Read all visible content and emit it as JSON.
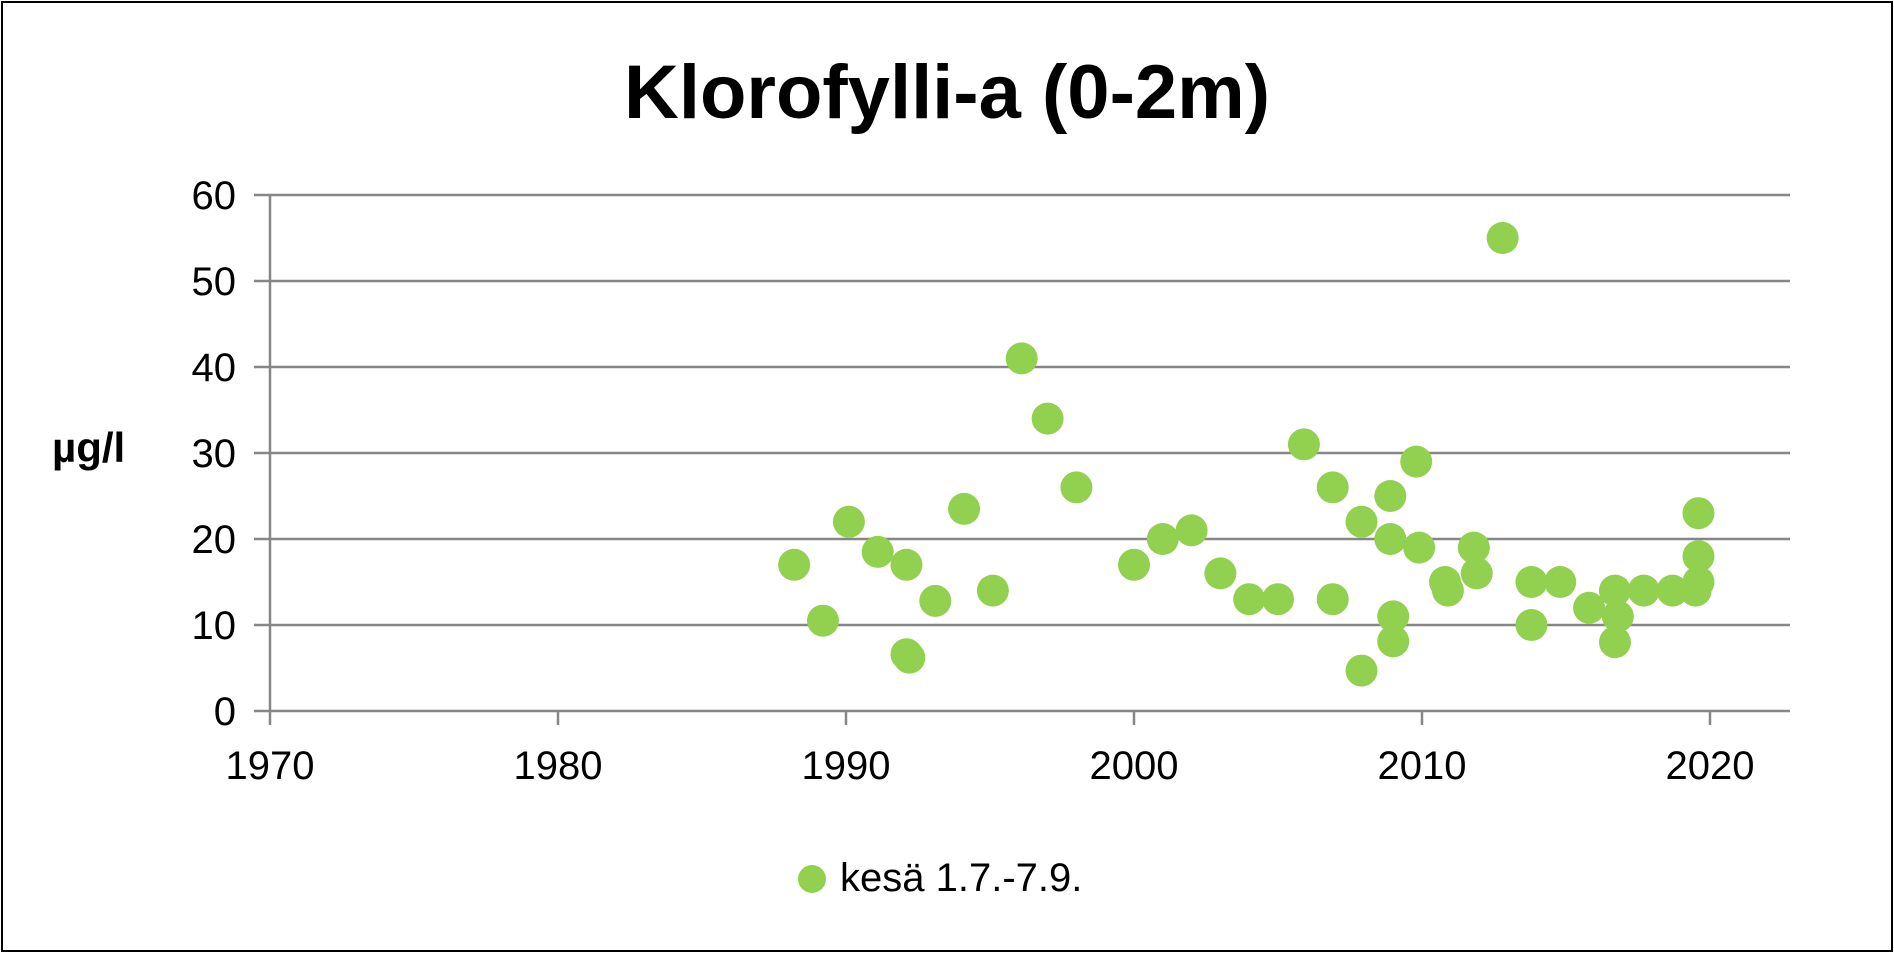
{
  "chart_data": {
    "type": "scatter",
    "title": "Klorofylli-a (0-2m)",
    "xlabel": "",
    "ylabel": "µg/l",
    "xlim": [
      1970,
      2022.5
    ],
    "ylim": [
      0,
      60
    ],
    "x_ticks": [
      1970,
      1980,
      1990,
      2000,
      2010,
      2020
    ],
    "y_ticks": [
      0,
      10,
      20,
      30,
      40,
      50,
      60
    ],
    "grid": "horizontal",
    "legend_position": "bottom",
    "color": "#92D050",
    "series": [
      {
        "name": "kesä 1.7.-7.9.",
        "points": [
          [
            1988.2,
            17
          ],
          [
            1989.2,
            10.5
          ],
          [
            1990.1,
            22
          ],
          [
            1991.1,
            18.5
          ],
          [
            1992.1,
            17
          ],
          [
            1992.1,
            6.6
          ],
          [
            1992.2,
            6.2
          ],
          [
            1993.1,
            12.8
          ],
          [
            1994.1,
            23.5
          ],
          [
            1995.1,
            14
          ],
          [
            1996.1,
            41
          ],
          [
            1997.0,
            34
          ],
          [
            1998.0,
            26
          ],
          [
            2000.0,
            17
          ],
          [
            2001.0,
            20
          ],
          [
            2002.0,
            21
          ],
          [
            2003.0,
            16
          ],
          [
            2004.0,
            13
          ],
          [
            2005.0,
            13
          ],
          [
            2005.9,
            31
          ],
          [
            2006.9,
            26
          ],
          [
            2006.9,
            13
          ],
          [
            2007.9,
            22
          ],
          [
            2007.9,
            4.7
          ],
          [
            2008.9,
            25
          ],
          [
            2008.9,
            20
          ],
          [
            2009.0,
            11
          ],
          [
            2009.0,
            8.1
          ],
          [
            2009.8,
            29
          ],
          [
            2009.9,
            19
          ],
          [
            2010.8,
            15
          ],
          [
            2010.9,
            14
          ],
          [
            2011.8,
            19
          ],
          [
            2011.9,
            16
          ],
          [
            2012.8,
            55
          ],
          [
            2013.8,
            15
          ],
          [
            2013.8,
            10
          ],
          [
            2014.8,
            15
          ],
          [
            2015.8,
            12
          ],
          [
            2016.7,
            14
          ],
          [
            2016.8,
            11
          ],
          [
            2016.7,
            8
          ],
          [
            2017.7,
            14
          ],
          [
            2018.7,
            14
          ],
          [
            2019.6,
            23
          ],
          [
            2019.6,
            18
          ],
          [
            2019.6,
            15
          ],
          [
            2019.5,
            14
          ]
        ]
      }
    ]
  }
}
